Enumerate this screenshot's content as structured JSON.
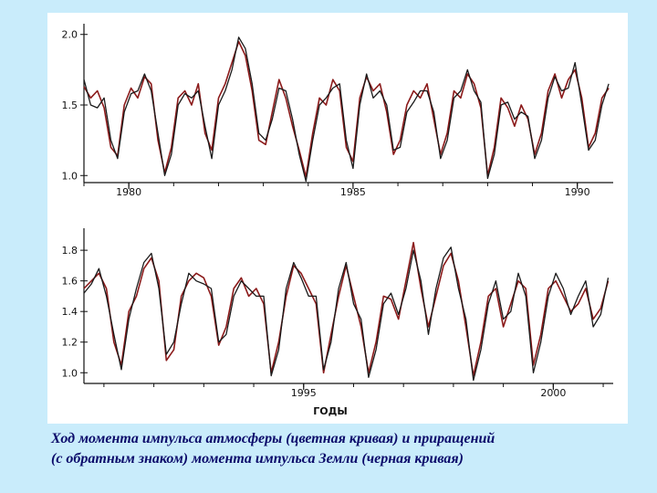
{
  "caption": {
    "line1": "Ход момента импульса атмосферы (цветная кривая) и приращений",
    "line2": "(с обратным знаком) момента импульса Земли (черная кривая)"
  },
  "colors": {
    "background": "#c9ecfb",
    "panel": "#ffffff",
    "atmosphere_series": "#8b1a1a",
    "earth_series": "#1a1a1a",
    "caption_text": "#0a0a6a"
  },
  "chart_data": [
    {
      "type": "line",
      "xlabel": "",
      "ylabel": "",
      "xlim": [
        1979.0,
        1990.8
      ],
      "ylim": [
        0.95,
        2.05
      ],
      "yticks": [
        "2.0",
        "1.5",
        "1.0"
      ],
      "xticks": [
        "1980",
        "1985",
        "1990"
      ],
      "grid": false,
      "series": [
        {
          "color": "#8b1a1a",
          "x": [
            1979.0,
            1979.15,
            1979.3,
            1979.45,
            1979.6,
            1979.75,
            1979.9,
            1980.05,
            1980.2,
            1980.35,
            1980.5,
            1980.65,
            1980.8,
            1980.95,
            1981.1,
            1981.25,
            1981.4,
            1981.55,
            1981.7,
            1981.85,
            1982.0,
            1982.15,
            1982.3,
            1982.45,
            1982.6,
            1982.75,
            1982.9,
            1983.05,
            1983.2,
            1983.35,
            1983.5,
            1983.65,
            1983.8,
            1983.95,
            1984.1,
            1984.25,
            1984.4,
            1984.55,
            1984.7,
            1984.85,
            1985.0,
            1985.15,
            1985.3,
            1985.45,
            1985.6,
            1985.75,
            1985.9,
            1986.05,
            1986.2,
            1986.35,
            1986.5,
            1986.65,
            1986.8,
            1986.95,
            1987.1,
            1987.25,
            1987.4,
            1987.55,
            1987.7,
            1987.85,
            1988.0,
            1988.15,
            1988.3,
            1988.45,
            1988.6,
            1988.75,
            1988.9,
            1989.05,
            1989.2,
            1989.35,
            1989.5,
            1989.65,
            1989.8,
            1989.95,
            1990.1,
            1990.25,
            1990.4,
            1990.55,
            1990.7
          ],
          "y": [
            1.63,
            1.55,
            1.6,
            1.48,
            1.2,
            1.14,
            1.5,
            1.62,
            1.55,
            1.7,
            1.65,
            1.25,
            1.02,
            1.2,
            1.55,
            1.6,
            1.5,
            1.65,
            1.3,
            1.18,
            1.55,
            1.65,
            1.8,
            1.95,
            1.85,
            1.6,
            1.25,
            1.22,
            1.45,
            1.68,
            1.55,
            1.35,
            1.18,
            0.99,
            1.3,
            1.55,
            1.5,
            1.68,
            1.6,
            1.2,
            1.1,
            1.55,
            1.7,
            1.6,
            1.65,
            1.45,
            1.15,
            1.25,
            1.5,
            1.6,
            1.55,
            1.65,
            1.4,
            1.15,
            1.3,
            1.6,
            1.55,
            1.72,
            1.65,
            1.48,
            1.0,
            1.2,
            1.55,
            1.48,
            1.35,
            1.5,
            1.4,
            1.15,
            1.3,
            1.6,
            1.72,
            1.55,
            1.68,
            1.75,
            1.55,
            1.2,
            1.3,
            1.55,
            1.62
          ]
        },
        {
          "color": "#1a1a1a",
          "x": [
            1979.0,
            1979.15,
            1979.3,
            1979.45,
            1979.6,
            1979.75,
            1979.9,
            1980.05,
            1980.2,
            1980.35,
            1980.5,
            1980.65,
            1980.8,
            1980.95,
            1981.1,
            1981.25,
            1981.4,
            1981.55,
            1981.7,
            1981.85,
            1982.0,
            1982.15,
            1982.3,
            1982.45,
            1982.6,
            1982.75,
            1982.9,
            1983.05,
            1983.2,
            1983.35,
            1983.5,
            1983.65,
            1983.8,
            1983.95,
            1984.1,
            1984.25,
            1984.4,
            1984.55,
            1984.7,
            1984.85,
            1985.0,
            1985.15,
            1985.3,
            1985.45,
            1985.6,
            1985.75,
            1985.9,
            1986.05,
            1986.2,
            1986.35,
            1986.5,
            1986.65,
            1986.8,
            1986.95,
            1987.1,
            1987.25,
            1987.4,
            1987.55,
            1987.7,
            1987.85,
            1988.0,
            1988.15,
            1988.3,
            1988.45,
            1988.6,
            1988.75,
            1988.9,
            1989.05,
            1989.2,
            1989.35,
            1989.5,
            1989.65,
            1989.8,
            1989.95,
            1990.1,
            1990.25,
            1990.4,
            1990.55,
            1990.7
          ],
          "y": [
            1.68,
            1.5,
            1.48,
            1.55,
            1.25,
            1.12,
            1.45,
            1.58,
            1.6,
            1.72,
            1.6,
            1.3,
            1.0,
            1.15,
            1.5,
            1.58,
            1.55,
            1.6,
            1.35,
            1.12,
            1.5,
            1.6,
            1.75,
            1.98,
            1.9,
            1.65,
            1.3,
            1.25,
            1.4,
            1.62,
            1.6,
            1.4,
            1.15,
            0.96,
            1.25,
            1.5,
            1.55,
            1.62,
            1.65,
            1.25,
            1.05,
            1.5,
            1.72,
            1.55,
            1.6,
            1.5,
            1.18,
            1.2,
            1.45,
            1.52,
            1.6,
            1.6,
            1.45,
            1.12,
            1.25,
            1.55,
            1.6,
            1.75,
            1.6,
            1.52,
            0.98,
            1.15,
            1.5,
            1.52,
            1.4,
            1.45,
            1.42,
            1.12,
            1.25,
            1.55,
            1.7,
            1.6,
            1.62,
            1.8,
            1.5,
            1.18,
            1.25,
            1.5,
            1.65
          ]
        }
      ]
    },
    {
      "type": "line",
      "xlabel": "ГОДЫ",
      "ylabel": "",
      "xlim": [
        1990.6,
        2001.2
      ],
      "ylim": [
        0.93,
        1.92
      ],
      "yticks": [
        "1.8",
        "1.6",
        "1.4",
        "1.2",
        "1.0"
      ],
      "xticks": [
        "1995",
        "2000"
      ],
      "grid": false,
      "series": [
        {
          "color": "#8b1a1a",
          "x": [
            1990.6,
            1990.75,
            1990.9,
            1991.05,
            1991.2,
            1991.35,
            1991.5,
            1991.65,
            1991.8,
            1991.95,
            1992.1,
            1992.25,
            1992.4,
            1992.55,
            1992.7,
            1992.85,
            1993.0,
            1993.15,
            1993.3,
            1993.45,
            1993.6,
            1993.75,
            1993.9,
            1994.05,
            1994.2,
            1994.35,
            1994.5,
            1994.65,
            1994.8,
            1994.95,
            1995.1,
            1995.25,
            1995.4,
            1995.55,
            1995.7,
            1995.85,
            1996.0,
            1996.15,
            1996.3,
            1996.45,
            1996.6,
            1996.75,
            1996.9,
            1997.05,
            1997.2,
            1997.35,
            1997.5,
            1997.65,
            1997.8,
            1997.95,
            1998.1,
            1998.25,
            1998.4,
            1998.55,
            1998.7,
            1998.85,
            1999.0,
            1999.15,
            1999.3,
            1999.45,
            1999.6,
            1999.75,
            1999.9,
            2000.05,
            2000.2,
            2000.35,
            2000.5,
            2000.65,
            2000.8,
            2000.95,
            2001.1
          ],
          "y": [
            1.55,
            1.6,
            1.65,
            1.55,
            1.2,
            1.05,
            1.4,
            1.5,
            1.68,
            1.75,
            1.6,
            1.08,
            1.15,
            1.5,
            1.6,
            1.65,
            1.62,
            1.5,
            1.18,
            1.3,
            1.55,
            1.62,
            1.5,
            1.55,
            1.45,
            1.0,
            1.2,
            1.5,
            1.7,
            1.65,
            1.55,
            1.45,
            1.0,
            1.25,
            1.5,
            1.7,
            1.5,
            1.3,
            1.0,
            1.2,
            1.5,
            1.48,
            1.35,
            1.6,
            1.85,
            1.55,
            1.3,
            1.5,
            1.7,
            1.78,
            1.6,
            1.3,
            0.98,
            1.2,
            1.5,
            1.55,
            1.3,
            1.45,
            1.6,
            1.55,
            1.05,
            1.25,
            1.55,
            1.6,
            1.5,
            1.4,
            1.45,
            1.55,
            1.35,
            1.42,
            1.6
          ]
        },
        {
          "color": "#1a1a1a",
          "x": [
            1990.6,
            1990.75,
            1990.9,
            1991.05,
            1991.2,
            1991.35,
            1991.5,
            1991.65,
            1991.8,
            1991.95,
            1992.1,
            1992.25,
            1992.4,
            1992.55,
            1992.7,
            1992.85,
            1993.0,
            1993.15,
            1993.3,
            1993.45,
            1993.6,
            1993.75,
            1993.9,
            1994.05,
            1994.2,
            1994.35,
            1994.5,
            1994.65,
            1994.8,
            1994.95,
            1995.1,
            1995.25,
            1995.4,
            1995.55,
            1995.7,
            1995.85,
            1996.0,
            1996.15,
            1996.3,
            1996.45,
            1996.6,
            1996.75,
            1996.9,
            1997.05,
            1997.2,
            1997.35,
            1997.5,
            1997.65,
            1997.8,
            1997.95,
            1998.1,
            1998.25,
            1998.4,
            1998.55,
            1998.7,
            1998.85,
            1999.0,
            1999.15,
            1999.3,
            1999.45,
            1999.6,
            1999.75,
            1999.9,
            2000.05,
            2000.2,
            2000.35,
            2000.5,
            2000.65,
            2000.8,
            2000.95,
            2001.1
          ],
          "y": [
            1.52,
            1.58,
            1.68,
            1.5,
            1.25,
            1.02,
            1.35,
            1.55,
            1.72,
            1.78,
            1.55,
            1.12,
            1.2,
            1.45,
            1.65,
            1.6,
            1.58,
            1.55,
            1.2,
            1.25,
            1.5,
            1.6,
            1.55,
            1.5,
            1.5,
            0.98,
            1.15,
            1.55,
            1.72,
            1.62,
            1.5,
            1.5,
            1.02,
            1.2,
            1.55,
            1.72,
            1.45,
            1.35,
            0.97,
            1.15,
            1.45,
            1.52,
            1.38,
            1.55,
            1.8,
            1.6,
            1.25,
            1.55,
            1.75,
            1.82,
            1.55,
            1.35,
            0.95,
            1.15,
            1.45,
            1.6,
            1.35,
            1.4,
            1.65,
            1.5,
            1.0,
            1.2,
            1.5,
            1.65,
            1.55,
            1.38,
            1.5,
            1.6,
            1.3,
            1.38,
            1.62
          ]
        }
      ]
    }
  ]
}
